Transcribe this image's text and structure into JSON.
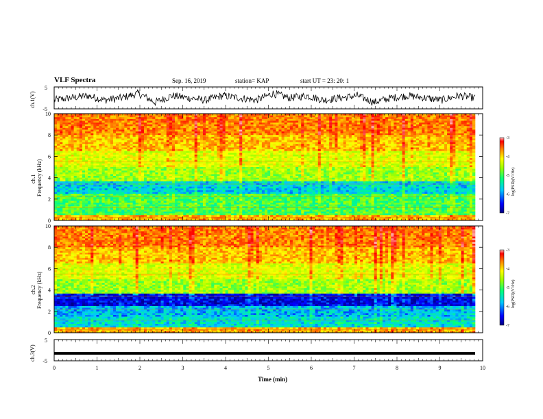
{
  "header": {
    "title": "VLF Spectra",
    "date": "Sep. 16, 2019",
    "station": "station= KAP",
    "start": "start  UT =   23: 20: 1"
  },
  "colors": {
    "trace": "#000000",
    "spectrogram_scale": [
      "#000080",
      "#0000ff",
      "#00c8ff",
      "#00ff80",
      "#a0ff00",
      "#ffff00",
      "#ff8000",
      "#ff0000",
      "#ffc0c0"
    ]
  },
  "chart_data": [
    {
      "type": "line",
      "panel": "ch1-waveform",
      "ylabel": "ch.1(V)",
      "ylim": [
        -5,
        5
      ],
      "yticks": [
        "5",
        "-5"
      ],
      "xlim": [
        0,
        10
      ],
      "series": [
        {
          "values": [
            -1,
            0,
            1,
            -1,
            0,
            2,
            -2,
            1,
            0,
            -1,
            1,
            0,
            -1,
            2,
            0,
            1,
            -1,
            0,
            1,
            -2,
            0,
            1,
            0,
            -1,
            1,
            0
          ]
        }
      ]
    },
    {
      "type": "heatmap",
      "panel": "ch1-spectrogram",
      "ylabel": "ch.1",
      "ylabel2": "Frequency (kHz)",
      "ylim": [
        0,
        10
      ],
      "yticks": [
        "0",
        "2",
        "4",
        "6",
        "8",
        "10"
      ],
      "xlim": [
        0,
        10
      ],
      "colorbar": {
        "label": "log(PSD)(V²/Hz)",
        "range": [
          -7,
          -3
        ],
        "ticks": [
          "-3",
          "-4",
          "-5",
          "-6",
          "-7"
        ]
      }
    },
    {
      "type": "heatmap",
      "panel": "ch2-spectrogram",
      "ylabel": "ch.2",
      "ylabel2": "Frequency (kHz)",
      "ylim": [
        0,
        10
      ],
      "yticks": [
        "0",
        "2",
        "4",
        "6",
        "8",
        "10"
      ],
      "xlim": [
        0,
        10
      ],
      "colorbar": {
        "label": "log(PSD)(V²/Hz)",
        "range": [
          -7,
          -3
        ],
        "ticks": [
          "-3",
          "-4",
          "-5",
          "-6",
          "-7"
        ]
      }
    },
    {
      "type": "line",
      "panel": "ch3-waveform",
      "ylabel": "ch.3(V)",
      "ylim": [
        -5,
        5
      ],
      "yticks": [
        "5",
        "-5"
      ],
      "xlim": [
        0,
        10
      ],
      "series": [
        {
          "values": [
            -1.5,
            -1.5
          ]
        }
      ]
    }
  ],
  "xaxis": {
    "label": "Time  (min)",
    "ticks": [
      "0",
      "1",
      "2",
      "3",
      "4",
      "5",
      "6",
      "7",
      "8",
      "9",
      "10"
    ]
  }
}
